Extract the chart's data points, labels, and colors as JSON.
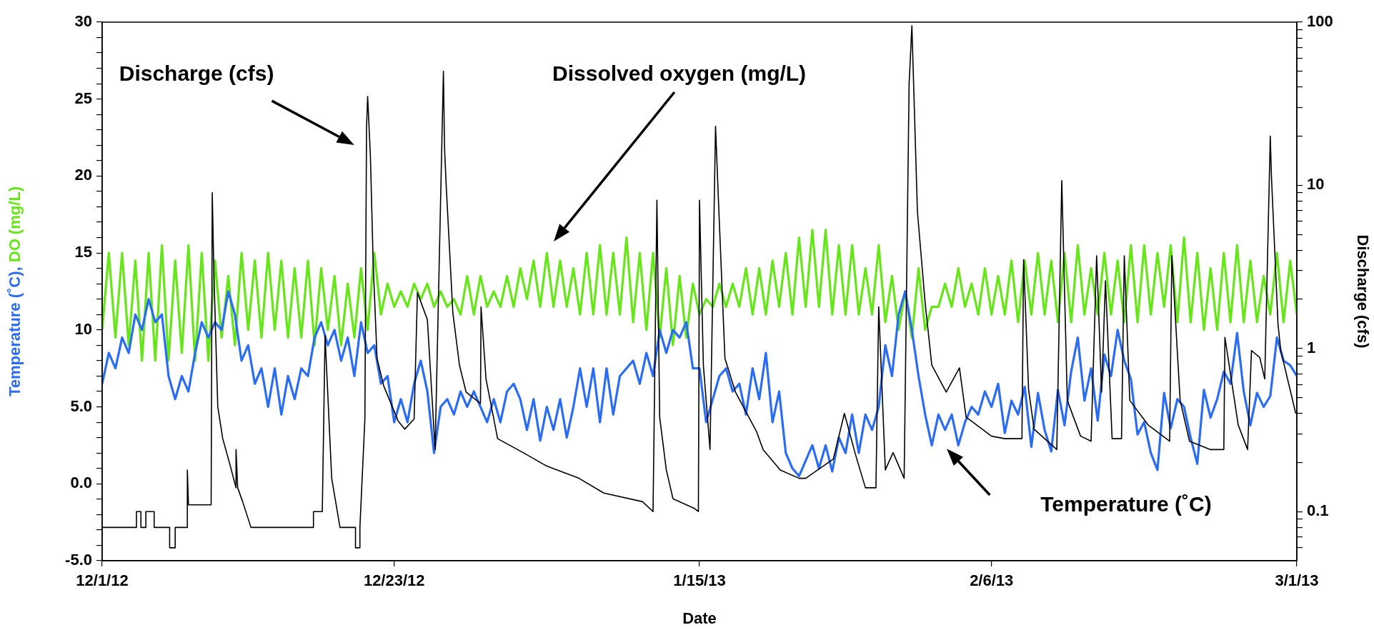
{
  "chart_data": {
    "type": "line",
    "xlabel": "Date",
    "ylabel": "Temperature (˚C), DO (mg/L)",
    "y2label": "Discharge (cfs)",
    "marker": "none",
    "log": "y2",
    "xlim": [
      "2012-12-01",
      "2013-03-01"
    ],
    "xticks": [
      {
        "value": "2012-12-01",
        "label": "12/1/12"
      },
      {
        "value": "2012-12-23",
        "label": "12/23/12"
      },
      {
        "value": "2013-01-15",
        "label": "1/15/13"
      },
      {
        "value": "2013-02-06",
        "label": "2/6/13"
      },
      {
        "value": "2013-03-01",
        "label": "3/1/13"
      }
    ],
    "ylim": [
      -5,
      30
    ],
    "yticks": [
      {
        "value": -5,
        "label": "-5.0"
      },
      {
        "value": -4,
        "label": null
      },
      {
        "value": -3,
        "label": null
      },
      {
        "value": -2,
        "label": null
      },
      {
        "value": -1,
        "label": null
      },
      {
        "value": 0,
        "label": "0.0"
      },
      {
        "value": 1,
        "label": null
      },
      {
        "value": 2,
        "label": null
      },
      {
        "value": 3,
        "label": null
      },
      {
        "value": 4,
        "label": null
      },
      {
        "value": 5,
        "label": "5.0"
      },
      {
        "value": 6,
        "label": null
      },
      {
        "value": 7,
        "label": null
      },
      {
        "value": 8,
        "label": null
      },
      {
        "value": 9,
        "label": null
      },
      10,
      {
        "value": 11,
        "label": null
      },
      {
        "value": 12,
        "label": null
      },
      {
        "value": 13,
        "label": null
      },
      {
        "value": 14,
        "label": null
      },
      15,
      {
        "value": 16,
        "label": null
      },
      {
        "value": 17,
        "label": null
      },
      {
        "value": 18,
        "label": null
      },
      {
        "value": 19,
        "label": null
      },
      20,
      {
        "value": 21,
        "label": null
      },
      {
        "value": 22,
        "label": null
      },
      {
        "value": 23,
        "label": null
      },
      {
        "value": 24,
        "label": null
      },
      25,
      {
        "value": 26,
        "label": null
      },
      {
        "value": 27,
        "label": null
      },
      {
        "value": 28,
        "label": null
      },
      {
        "value": 29,
        "label": null
      },
      30
    ],
    "y2lim": [
      0.05,
      100
    ],
    "y2ticks": [
      {
        "value": 0.06,
        "label": null
      },
      {
        "value": 0.07,
        "label": null
      },
      {
        "value": 0.08,
        "label": null
      },
      {
        "value": 0.09,
        "label": null
      },
      0.1,
      {
        "value": 0.2,
        "label": null
      },
      {
        "value": 0.3,
        "label": null
      },
      {
        "value": 0.4,
        "label": null
      },
      {
        "value": 0.5,
        "label": null
      },
      {
        "value": 0.6,
        "label": null
      },
      {
        "value": 0.7,
        "label": null
      },
      {
        "value": 0.8,
        "label": null
      },
      {
        "value": 0.9,
        "label": null
      },
      1,
      {
        "value": 2,
        "label": null
      },
      {
        "value": 3,
        "label": null
      },
      {
        "value": 4,
        "label": null
      },
      {
        "value": 5,
        "label": null
      },
      {
        "value": 6,
        "label": null
      },
      {
        "value": 7,
        "label": null
      },
      {
        "value": 8,
        "label": null
      },
      {
        "value": 9,
        "label": null
      },
      10,
      {
        "value": 20,
        "label": null
      },
      {
        "value": 30,
        "label": null
      },
      {
        "value": 40,
        "label": null
      },
      {
        "value": 50,
        "label": null
      },
      {
        "value": 60,
        "label": null
      },
      {
        "value": 70,
        "label": null
      },
      {
        "value": 80,
        "label": null
      },
      {
        "value": 90,
        "label": null
      },
      100
    ],
    "annotations": [
      "Discharge (cfs)",
      "Dissolved oxygen (mg/L)",
      "Temperature (˚C)"
    ],
    "x": [
      "2012-12-01T00:00",
      "2012-12-01T12:00",
      "2012-12-02T00:00",
      "2012-12-02T12:00",
      "2012-12-03T00:00",
      "2012-12-03T12:00",
      "2012-12-04T00:00",
      "2012-12-04T12:00",
      "2012-12-05T00:00",
      "2012-12-05T12:00",
      "2012-12-06T00:00",
      "2012-12-06T12:00",
      "2012-12-07T00:00",
      "2012-12-07T12:00",
      "2012-12-08T00:00",
      "2012-12-08T12:00",
      "2012-12-09T00:00",
      "2012-12-09T12:00",
      "2012-12-10T00:00",
      "2012-12-10T12:00",
      "2012-12-11T00:00",
      "2012-12-11T12:00",
      "2012-12-12T00:00",
      "2012-12-12T12:00",
      "2012-12-13T00:00",
      "2012-12-13T12:00",
      "2012-12-14T00:00",
      "2012-12-14T12:00",
      "2012-12-15T00:00",
      "2012-12-15T12:00",
      "2012-12-16T00:00",
      "2012-12-16T12:00",
      "2012-12-17T00:00",
      "2012-12-17T12:00",
      "2012-12-18T00:00",
      "2012-12-18T12:00",
      "2012-12-19T00:00",
      "2012-12-19T12:00",
      "2012-12-20T00:00",
      "2012-12-20T12:00",
      "2012-12-21T00:00",
      "2012-12-21T12:00",
      "2012-12-22T00:00",
      "2012-12-22T12:00",
      "2012-12-23T00:00",
      "2012-12-23T12:00",
      "2012-12-24T00:00",
      "2012-12-24T12:00",
      "2012-12-25T00:00",
      "2012-12-25T12:00",
      "2012-12-26T00:00",
      "2012-12-26T12:00",
      "2012-12-27T00:00",
      "2012-12-27T12:00",
      "2012-12-28T00:00",
      "2012-12-28T12:00",
      "2012-12-29T00:00",
      "2012-12-29T12:00",
      "2012-12-30T00:00",
      "2012-12-30T12:00",
      "2012-12-31T00:00",
      "2012-12-31T12:00",
      "2013-01-01T00:00",
      "2013-01-01T12:00",
      "2013-01-02T00:00",
      "2013-01-02T12:00",
      "2013-01-03T00:00",
      "2013-01-03T12:00",
      "2013-01-04T00:00",
      "2013-01-04T12:00",
      "2013-01-05T00:00",
      "2013-01-05T12:00",
      "2013-01-06T00:00",
      "2013-01-06T12:00",
      "2013-01-07T00:00",
      "2013-01-07T12:00",
      "2013-01-08T00:00",
      "2013-01-08T12:00",
      "2013-01-09T00:00",
      "2013-01-09T12:00",
      "2013-01-10T00:00",
      "2013-01-10T12:00",
      "2013-01-11T00:00",
      "2013-01-11T12:00",
      "2013-01-12T00:00",
      "2013-01-12T12:00",
      "2013-01-13T00:00",
      "2013-01-13T12:00",
      "2013-01-14T00:00",
      "2013-01-14T12:00",
      "2013-01-15T00:00",
      "2013-01-15T12:00",
      "2013-01-16T00:00",
      "2013-01-16T12:00",
      "2013-01-17T00:00",
      "2013-01-17T12:00",
      "2013-01-18T00:00",
      "2013-01-18T12:00",
      "2013-01-19T00:00",
      "2013-01-19T12:00",
      "2013-01-20T00:00",
      "2013-01-20T12:00",
      "2013-01-21T00:00",
      "2013-01-21T12:00",
      "2013-01-22T00:00",
      "2013-01-22T12:00",
      "2013-01-23T00:00",
      "2013-01-23T12:00",
      "2013-01-24T00:00",
      "2013-01-24T12:00",
      "2013-01-25T00:00",
      "2013-01-25T12:00",
      "2013-01-26T00:00",
      "2013-01-26T12:00",
      "2013-01-27T00:00",
      "2013-01-27T12:00",
      "2013-01-28T00:00",
      "2013-01-28T12:00",
      "2013-01-29T00:00",
      "2013-01-29T12:00",
      "2013-01-30T00:00",
      "2013-01-30T12:00",
      "2013-01-31T00:00",
      "2013-01-31T12:00",
      "2013-02-01T00:00",
      "2013-02-01T12:00",
      "2013-02-02T00:00",
      "2013-02-02T12:00",
      "2013-02-03T00:00",
      "2013-02-03T12:00",
      "2013-02-04T00:00",
      "2013-02-04T12:00",
      "2013-02-05T00:00",
      "2013-02-05T12:00",
      "2013-02-06T00:00",
      "2013-02-06T12:00",
      "2013-02-07T00:00",
      "2013-02-07T12:00",
      "2013-02-08T00:00",
      "2013-02-08T12:00",
      "2013-02-09T00:00",
      "2013-02-09T12:00",
      "2013-02-10T00:00",
      "2013-02-10T12:00",
      "2013-02-11T00:00",
      "2013-02-11T12:00",
      "2013-02-12T00:00",
      "2013-02-12T12:00",
      "2013-02-13T00:00",
      "2013-02-13T12:00",
      "2013-02-14T00:00",
      "2013-02-14T12:00",
      "2013-02-15T00:00",
      "2013-02-15T12:00",
      "2013-02-16T00:00",
      "2013-02-16T12:00",
      "2013-02-17T00:00",
      "2013-02-17T12:00",
      "2013-02-18T00:00",
      "2013-02-18T12:00",
      "2013-02-19T00:00",
      "2013-02-19T12:00",
      "2013-02-20T00:00",
      "2013-02-20T12:00",
      "2013-02-21T00:00",
      "2013-02-21T12:00",
      "2013-02-22T00:00",
      "2013-02-22T12:00",
      "2013-02-23T00:00",
      "2013-02-23T12:00",
      "2013-02-24T00:00",
      "2013-02-24T12:00",
      "2013-02-25T00:00",
      "2013-02-25T12:00",
      "2013-02-26T00:00",
      "2013-02-26T12:00",
      "2013-02-27T00:00",
      "2013-02-27T12:00",
      "2013-02-28T00:00",
      "2013-02-28T12:00",
      "2013-03-01T00:00"
    ],
    "series": [
      {
        "color": "#2b6cf5",
        "values": [
          6.5,
          8.5,
          7.5,
          9.5,
          8.5,
          11,
          10,
          12,
          10.5,
          11,
          7,
          5.5,
          7,
          6,
          8.5,
          10.5,
          9.5,
          10.5,
          10,
          12.5,
          11,
          8,
          9,
          6.5,
          7.5,
          5,
          7.5,
          4.5,
          7,
          5.5,
          7.5,
          7,
          9.5,
          10.5,
          9,
          10,
          8,
          9.5,
          7,
          10.5,
          8.5,
          9,
          6.5,
          7,
          4,
          5.5,
          4,
          6.5,
          8,
          6,
          2,
          5,
          5.5,
          4.5,
          6,
          5,
          6,
          5,
          4,
          5.5,
          4,
          6,
          6.5,
          5.5,
          3.5,
          5.5,
          2.8,
          5,
          3.5,
          5.5,
          3,
          5,
          7.5,
          5,
          7.5,
          4,
          7.5,
          4.5,
          7,
          7.5,
          8,
          6.5,
          8.5,
          7,
          10,
          8.5,
          10,
          9.5,
          10.5,
          7.5,
          7.5,
          4,
          5.5,
          7,
          7.5,
          6,
          6.5,
          4.5,
          7.5,
          5.5,
          8.5,
          4,
          6,
          2,
          1,
          0.5,
          1.5,
          2.5,
          1,
          2.5,
          0.8,
          3,
          2,
          4.5,
          2,
          4.5,
          3.5,
          5,
          9,
          7,
          11,
          12.5,
          10,
          7,
          4.5,
          2.5,
          4.5,
          3.5,
          4.5,
          2.5,
          4,
          5,
          4.5,
          6,
          5,
          6.5,
          3.3,
          5.4,
          4.5,
          6.3,
          2.4,
          5.9,
          3.5,
          2.1,
          6.1,
          3.8,
          7.3,
          9.5,
          5.4,
          7.5,
          4.1,
          8.4,
          7,
          10,
          8,
          6.8,
          3.2,
          4,
          2,
          0.9,
          5.9,
          3.6,
          5.5,
          5,
          3,
          1.3,
          6.1,
          4.3,
          5.5,
          7.3,
          6.5,
          9.8,
          6,
          3.8,
          5.9,
          5,
          5.7,
          9.5,
          8,
          7.7,
          7
        ]
      },
      {
        "color": "#66e619",
        "values": [
          10,
          15,
          9.5,
          15,
          9,
          14.5,
          8,
          15,
          8,
          15.5,
          8,
          14.5,
          8.5,
          15.5,
          8,
          15,
          8,
          14.5,
          9.5,
          13.5,
          9,
          15,
          10,
          14.5,
          9.5,
          15,
          10,
          14.5,
          9.5,
          14,
          9.5,
          14.5,
          9,
          14,
          10,
          13.5,
          9,
          13,
          9.5,
          14,
          10,
          15,
          11,
          13,
          11.5,
          12.5,
          11.5,
          13,
          12,
          13,
          11.5,
          12.5,
          11.5,
          12,
          11,
          13.5,
          11,
          13.5,
          11.5,
          12.5,
          11.5,
          13.5,
          11.5,
          14,
          12,
          14.5,
          11.5,
          15,
          11.5,
          14.5,
          11.5,
          14,
          11,
          15,
          11,
          15.5,
          11,
          15,
          11,
          16,
          10.5,
          15,
          10,
          15,
          9.5,
          14,
          9,
          13.5,
          9.5,
          13,
          11,
          12,
          11.5,
          13,
          11.5,
          13,
          11.5,
          14,
          11,
          14,
          11,
          14.5,
          11.5,
          15,
          11,
          16,
          11.5,
          16.5,
          11.5,
          16.5,
          11,
          15.5,
          11,
          15.5,
          11,
          14,
          11,
          15.5,
          10.5,
          13.5,
          10,
          12.5,
          9.5,
          14,
          10,
          11.5,
          11.5,
          13,
          11.5,
          14,
          11.5,
          13,
          11,
          14,
          11,
          13.5,
          11,
          14.5,
          10.5,
          14.5,
          11,
          15,
          11,
          14.5,
          10.5,
          15,
          10.5,
          15.5,
          11,
          14,
          11,
          15,
          11,
          14.5,
          10.5,
          15.5,
          10.5,
          15.5,
          11,
          15,
          11.5,
          15.5,
          10.5,
          16,
          10.5,
          15,
          10,
          14,
          10,
          15,
          10.5,
          15.5,
          10.5,
          14.5,
          10.5,
          13.5,
          11,
          15,
          10.5,
          14.5,
          11
        ]
      },
      {
        "axis": "y2",
        "color": "#000000",
        "x": [
          "2012-12-01T00:00",
          "2012-12-03T14:00",
          "2012-12-03T14:00",
          "2012-12-03T22:00",
          "2012-12-03T22:00",
          "2012-12-04T07:00",
          "2012-12-04T07:00",
          "2012-12-04T22:00",
          "2012-12-04T22:00",
          "2012-12-06T02:00",
          "2012-12-06T02:00",
          "2012-12-06T12:00",
          "2012-12-06T12:00",
          "2012-12-07T10:00",
          "2012-12-07T10:00",
          "2012-12-07T12:00",
          "2012-12-09T05:00",
          "2012-12-09T07:00",
          "2012-12-09T10:00",
          "2012-12-09T17:00",
          "2012-12-10T02:00",
          "2012-12-10T14:00",
          "2012-12-11T02:00",
          "2012-12-11T02:00",
          "2012-12-11T05:00",
          "2012-12-11T14:00",
          "2012-12-12T05:00",
          "2012-12-16T22:00",
          "2012-12-16T22:00",
          "2012-12-17T14:00",
          "2012-12-17T19:00",
          "2012-12-18T07:00",
          "2012-12-18T22:00",
          "2012-12-20T02:00",
          "2012-12-20T02:00",
          "2012-12-20T10:00",
          "2012-12-20T10:00",
          "2012-12-20T19:00",
          "2012-12-20T22:00",
          "2012-12-21T00:00",
          "2012-12-21T05:00",
          "2012-12-21T10:00",
          "2012-12-21T17:00",
          "2012-12-22T05:00",
          "2012-12-23T07:00",
          "2012-12-23T19:00",
          "2012-12-24T12:00",
          "2012-12-24T18:00",
          "2012-12-25T12:00",
          "2012-12-26T02:00",
          "2012-12-26T17:00",
          "2012-12-26T19:00",
          "2012-12-26T22:00",
          "2012-12-27T10:00",
          "2012-12-27T22:00",
          "2012-12-28T10:00",
          "2012-12-29T12:00",
          "2012-12-29T13:00",
          "2012-12-29T22:00",
          "2012-12-30T19:00",
          "2013-01-01T17:00",
          "2013-01-03T12:00",
          "2013-01-05T22:00",
          "2013-01-07T19:00",
          "2013-01-10T17:00",
          "2013-01-11T12:00",
          "2013-01-11T19:00",
          "2013-01-12T00:00",
          "2013-01-12T12:00",
          "2013-01-13T00:00",
          "2013-01-14T14:00",
          "2013-01-14T22:00",
          "2013-01-15T00:00",
          "2013-01-15T07:00",
          "2013-01-15T19:00",
          "2013-01-16T05:00",
          "2013-01-16T10:00",
          "2013-01-16T22:00",
          "2013-01-17T17:00",
          "2013-01-19T07:00",
          "2013-01-19T19:00",
          "2013-01-21T02:00",
          "2013-01-22T12:00",
          "2013-01-23T00:00",
          "2013-01-25T02:00",
          "2013-01-25T22:00",
          "2013-01-26T17:00",
          "2013-01-27T12:00",
          "2013-01-28T07:00",
          "2013-01-28T12:00",
          "2013-01-29T00:00",
          "2013-01-29T14:00",
          "2013-01-30T10:00",
          "2013-01-30T19:00",
          "2013-01-31T00:00",
          "2013-01-31T10:00",
          "2013-02-01T00:00",
          "2013-02-01T12:00",
          "2013-02-02T14:00",
          "2013-02-03T14:00",
          "2013-02-04T02:00",
          "2013-02-06T00:00",
          "2013-02-07T00:00",
          "2013-02-08T07:00",
          "2013-02-08T10:00",
          "2013-02-08T19:00",
          "2013-02-09T05:00",
          "2013-02-10T22:00",
          "2013-02-11T07:00",
          "2013-02-11T17:00",
          "2013-02-12T17:00",
          "2013-02-13T12:00",
          "2013-02-13T22:00",
          "2013-02-14T07:00",
          "2013-02-14T14:00",
          "2013-02-15T02:00",
          "2013-02-15T19:00",
          "2013-02-16T00:00",
          "2013-02-16T10:00",
          "2013-02-17T19:00",
          "2013-02-19T10:00",
          "2013-02-19T14:00",
          "2013-02-20T05:00",
          "2013-02-20T22:00",
          "2013-02-22T12:00",
          "2013-02-23T12:00",
          "2013-02-23T14:00",
          "2013-02-24T14:00",
          "2013-02-25T07:00",
          "2013-02-25T14:00",
          "2013-02-26T05:00",
          "2013-02-26T14:00",
          "2013-02-27T00:00",
          "2013-02-27T02:00",
          "2013-02-27T14:00",
          "2013-02-27T19:00",
          "2013-02-28T22:00"
        ],
        "values": [
          0.08,
          0.08,
          0.1,
          0.1,
          0.08,
          0.08,
          0.1,
          0.1,
          0.08,
          0.08,
          0.06,
          0.06,
          0.08,
          0.08,
          0.18,
          0.11,
          0.11,
          9,
          2.9,
          0.44,
          0.28,
          0.2,
          0.14,
          0.24,
          0.14,
          0.115,
          0.08,
          0.08,
          0.1,
          0.1,
          1.2,
          0.16,
          0.08,
          0.08,
          0.06,
          0.06,
          0.08,
          0.37,
          23,
          35,
          15,
          3.3,
          0.87,
          0.59,
          0.36,
          0.32,
          0.37,
          2.2,
          1.5,
          0.24,
          50,
          17,
          10,
          1.66,
          0.79,
          0.54,
          0.46,
          1.8,
          0.65,
          0.28,
          0.23,
          0.19,
          0.16,
          0.13,
          0.115,
          0.1,
          8.1,
          0.38,
          0.18,
          0.12,
          0.105,
          0.1,
          8.1,
          0.79,
          0.24,
          23,
          8.5,
          0.87,
          0.54,
          0.31,
          0.24,
          0.18,
          0.16,
          0.16,
          0.21,
          0.4,
          0.23,
          0.14,
          0.14,
          1.8,
          0.18,
          0.23,
          0.16,
          42,
          95,
          6.9,
          1.9,
          0.79,
          0.54,
          0.76,
          0.38,
          0.29,
          0.28,
          0.28,
          3.5,
          0.56,
          0.32,
          0.24,
          10.7,
          0.48,
          0.29,
          0.27,
          3.7,
          0.54,
          2.6,
          0.28,
          0.28,
          3.7,
          0.48,
          0.34,
          0.27,
          3.7,
          0.48,
          0.27,
          0.24,
          0.24,
          1.17,
          0.34,
          0.24,
          0.97,
          0.88,
          0.65,
          20,
          11.5,
          1.4,
          0.97,
          0.4
        ]
      }
    ]
  }
}
